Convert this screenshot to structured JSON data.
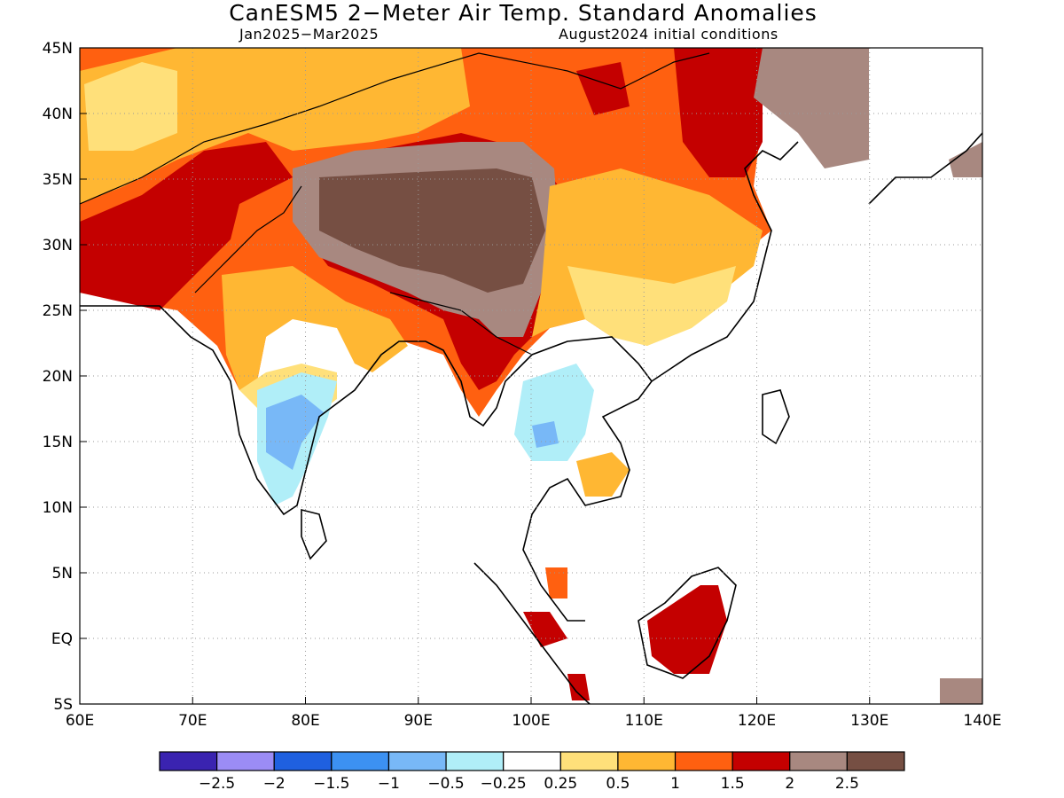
{
  "title": "CanESM5 2−Meter Air Temp. Standard Anomalies",
  "subtitle_left": "Jan2025−Mar2025",
  "subtitle_right": "August2024 initial conditions",
  "map": {
    "lon_range": [
      60,
      140
    ],
    "lat_range": [
      -5,
      45
    ],
    "lon_ticks": [
      "60E",
      "70E",
      "80E",
      "90E",
      "100E",
      "110E",
      "120E",
      "130E",
      "140E"
    ],
    "lat_ticks": [
      "45N",
      "40N",
      "35N",
      "30N",
      "25N",
      "20N",
      "15N",
      "10N",
      "5N",
      "EQ",
      "5S"
    ]
  },
  "colorbar": {
    "colors": [
      "#3a23b0",
      "#9b8cf5",
      "#1f60e0",
      "#3c91f2",
      "#78b8f7",
      "#b0eef8",
      "#ffffff",
      "#ffe07a",
      "#ffb733",
      "#ff6010",
      "#c40000",
      "#a88880",
      "#764f43"
    ],
    "labels": [
      "−2.5",
      "−2",
      "−1.5",
      "−1",
      "−0.5",
      "−0.25",
      "0.25",
      "0.5",
      "1",
      "1.5",
      "2",
      "2.5"
    ]
  },
  "colors": {
    "land_outline": "#000000",
    "grid": "#9a9a9a"
  }
}
